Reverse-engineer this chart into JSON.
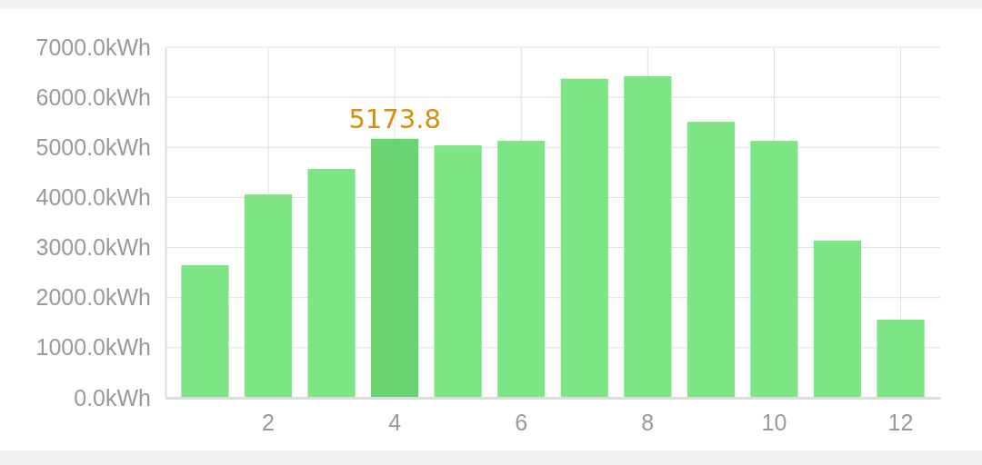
{
  "chart_data": {
    "type": "bar",
    "categories": [
      null,
      "2",
      null,
      "4",
      null,
      "6",
      null,
      "8",
      null,
      "10",
      null,
      "12"
    ],
    "values": [
      2650,
      4060,
      4570,
      5173.8,
      5040,
      5130,
      6370,
      6420,
      5510,
      5130,
      3140,
      1560
    ],
    "colors": [
      "#7de583",
      "#7de583",
      "#7de583",
      "#6bd472",
      "#7de583",
      "#7de583",
      "#7de583",
      "#7de583",
      "#7de583",
      "#7de583",
      "#7de583",
      "#7de583"
    ],
    "value_labels": [
      null,
      null,
      null,
      "5173.8",
      null,
      null,
      null,
      null,
      null,
      null,
      null,
      null
    ],
    "ylim": [
      0,
      7000
    ],
    "yticks": [
      {
        "value": 0,
        "label": "0.0kWh"
      },
      {
        "value": 1000,
        "label": "1000.0kWh"
      },
      {
        "value": 2000,
        "label": "2000.0kWh"
      },
      {
        "value": 3000,
        "label": "3000.0kWh"
      },
      {
        "value": 4000,
        "label": "4000.0kWh"
      },
      {
        "value": 5000,
        "label": "5000.0kWh"
      },
      {
        "value": 6000,
        "label": "6000.0kWh"
      },
      {
        "value": 7000,
        "label": "7000.0kWh"
      }
    ],
    "grid": true
  }
}
